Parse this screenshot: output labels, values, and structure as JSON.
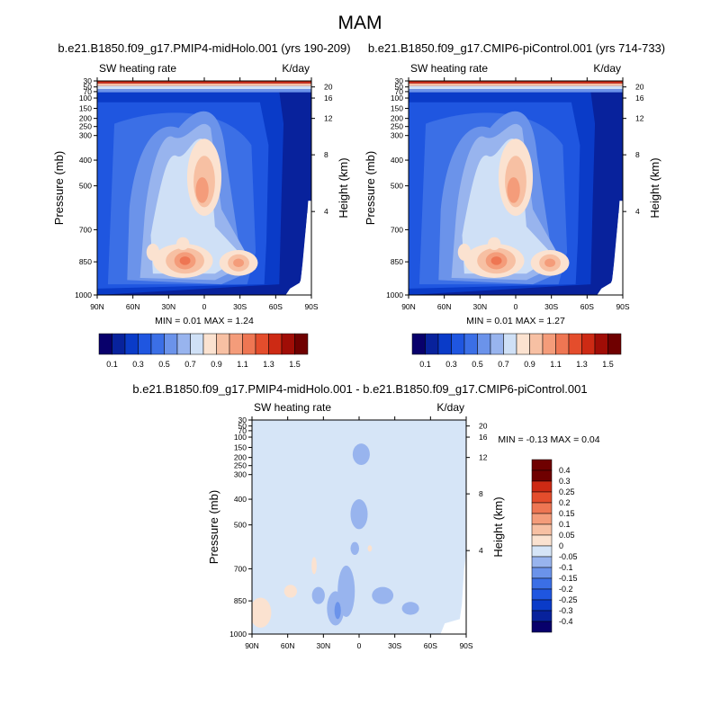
{
  "page_title": "MAM",
  "colors": {
    "seq_palette": [
      "#08006b",
      "#08229c",
      "#0a3bc8",
      "#1f56e0",
      "#3b6fe6",
      "#6b93ea",
      "#98b4ee",
      "#cfe0f6",
      "#fbe2d0",
      "#f7c0a3",
      "#f49c7a",
      "#ee7653",
      "#e44d2c",
      "#cd2a14",
      "#a00d06",
      "#6f0000"
    ],
    "diff_palette": [
      "#08006b",
      "#08229c",
      "#0a3bc8",
      "#1f56e0",
      "#3b6fe6",
      "#6b93ea",
      "#98b4ee",
      "#d6e5f7",
      "#fbe2d0",
      "#f7c0a3",
      "#f49c7a",
      "#ee7653",
      "#e44d2c",
      "#cd2a14",
      "#6f0000"
    ]
  },
  "chart_data": [
    {
      "type": "heatmap",
      "title": "b.e21.B1850.f09_g17.PMIP4-midHolo.001 (yrs 190-209)",
      "left_string": "SW heating rate",
      "right_string": "K/day",
      "xlabel": "",
      "ylabel": "Pressure (mb)",
      "ylabel_right": "Height (km)",
      "x_ticks": [
        "90N",
        "60N",
        "30N",
        "0",
        "30S",
        "60S",
        "90S"
      ],
      "y_ticks": [
        "30",
        "50",
        "70",
        "100",
        "150",
        "200",
        "250",
        "300",
        "400",
        "500",
        "700",
        "850",
        "1000"
      ],
      "y_ticks_right": [
        "20",
        "16",
        "12",
        "8",
        "4"
      ],
      "stats": "MIN =   0.01   MAX =   1.24",
      "colorbar_labels": [
        "0.1",
        "0.3",
        "0.5",
        "0.7",
        "0.9",
        "1.1",
        "1.3",
        "1.5"
      ],
      "contour_levels": [
        0.1,
        0.2,
        0.3,
        0.4,
        0.5,
        0.6,
        0.7,
        0.8,
        0.9,
        1.0,
        1.1,
        1.2,
        1.3,
        1.4,
        1.5
      ],
      "min": 0.01,
      "max": 1.24
    },
    {
      "type": "heatmap",
      "title": "b.e21.B1850.f09_g17.CMIP6-piControl.001 (yrs 714-733)",
      "left_string": "SW heating rate",
      "right_string": "K/day",
      "xlabel": "",
      "ylabel": "Pressure (mb)",
      "ylabel_right": "Height (km)",
      "x_ticks": [
        "90N",
        "60N",
        "30N",
        "0",
        "30S",
        "60S",
        "90S"
      ],
      "y_ticks": [
        "30",
        "50",
        "70",
        "100",
        "150",
        "200",
        "250",
        "300",
        "400",
        "500",
        "700",
        "850",
        "1000"
      ],
      "y_ticks_right": [
        "20",
        "16",
        "12",
        "8",
        "4"
      ],
      "stats": "MIN =   0.01   MAX =   1.27",
      "colorbar_labels": [
        "0.1",
        "0.3",
        "0.5",
        "0.7",
        "0.9",
        "1.1",
        "1.3",
        "1.5"
      ],
      "contour_levels": [
        0.1,
        0.2,
        0.3,
        0.4,
        0.5,
        0.6,
        0.7,
        0.8,
        0.9,
        1.0,
        1.1,
        1.2,
        1.3,
        1.4,
        1.5
      ],
      "min": 0.01,
      "max": 1.27
    },
    {
      "type": "heatmap",
      "title": "b.e21.B1850.f09_g17.PMIP4-midHolo.001 - b.e21.B1850.f09_g17.CMIP6-piControl.001",
      "left_string": "SW heating rate",
      "right_string": "K/day",
      "xlabel": "",
      "ylabel": "Pressure (mb)",
      "ylabel_right": "Height (km)",
      "x_ticks": [
        "90N",
        "60N",
        "30N",
        "0",
        "30S",
        "60S",
        "90S"
      ],
      "y_ticks": [
        "30",
        "50",
        "70",
        "100",
        "150",
        "200",
        "250",
        "300",
        "400",
        "500",
        "700",
        "850",
        "1000"
      ],
      "y_ticks_right": [
        "20",
        "16",
        "12",
        "8",
        "4"
      ],
      "stats": "MIN =  -0.13   MAX =   0.04",
      "colorbar_labels": [
        "0.4",
        "0.3",
        "0.25",
        "0.2",
        "0.15",
        "0.1",
        "0.05",
        "0",
        "-0.05",
        "-0.1",
        "-0.15",
        "-0.2",
        "-0.25",
        "-0.3",
        "-0.4"
      ],
      "contour_levels": [
        -0.4,
        -0.3,
        -0.25,
        -0.2,
        -0.15,
        -0.1,
        -0.05,
        0,
        0.05,
        0.1,
        0.15,
        0.2,
        0.25,
        0.3,
        0.4
      ],
      "min": -0.13,
      "max": 0.04
    }
  ]
}
